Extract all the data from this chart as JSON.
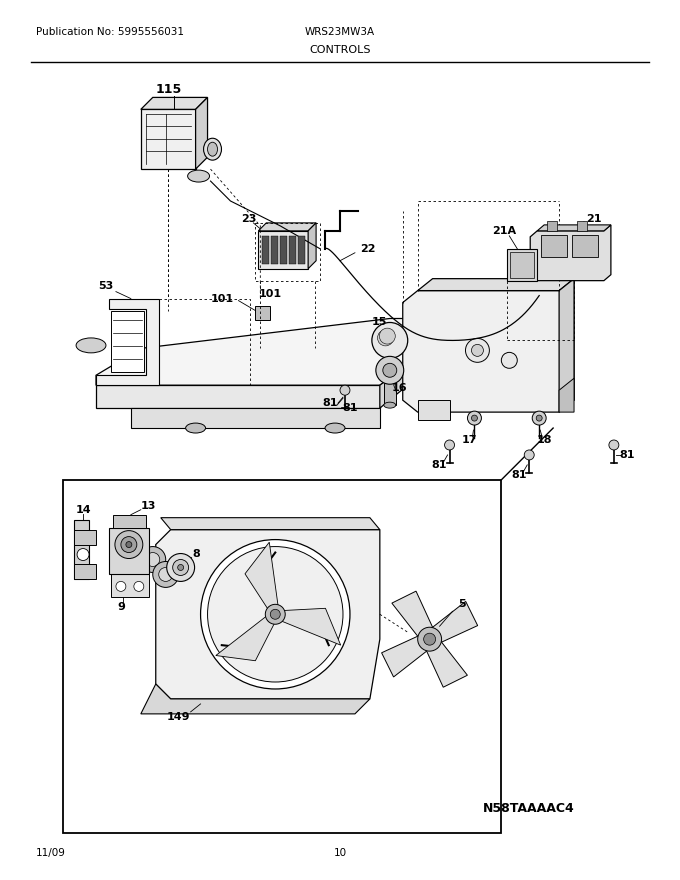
{
  "title_left": "Publication No: 5995556031",
  "title_center": "WRS23MW3A",
  "title_sub": "CONTROLS",
  "footer_left": "11/09",
  "footer_center": "10",
  "model_code": "N58TAAAAC4",
  "bg_color": "#ffffff",
  "figsize": [
    6.8,
    8.8
  ],
  "dpi": 100
}
